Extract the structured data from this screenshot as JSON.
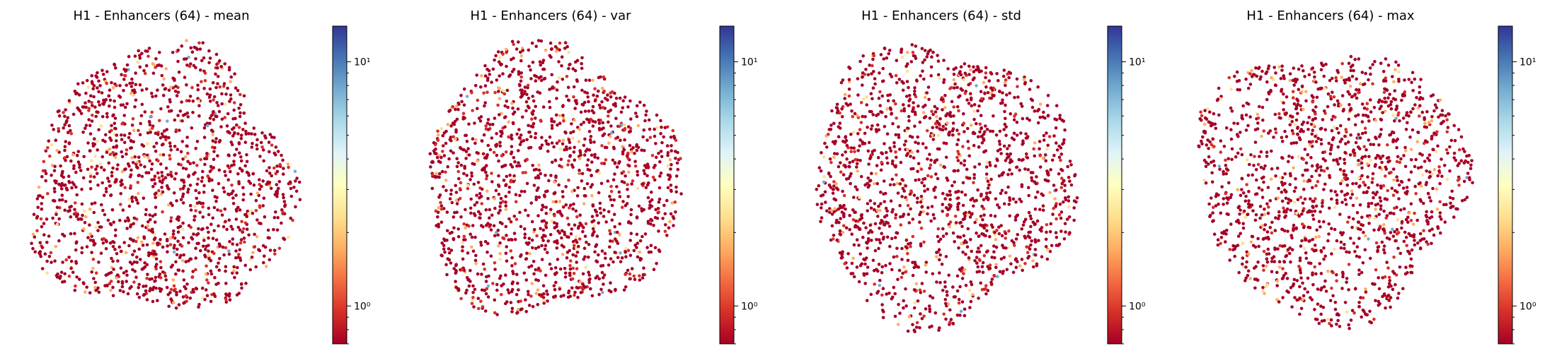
{
  "chart_data": [
    {
      "type": "scatter",
      "title": "H1 - Enhancers (64) - mean",
      "xlabel": "",
      "ylabel": "",
      "axes_visible": false,
      "grid": false,
      "colorbar": {
        "colormap": "RdYlBu",
        "scale": "log",
        "range": [
          0.7,
          14
        ],
        "major_ticks": [
          1,
          10
        ],
        "tick_labels": [
          "10⁰",
          "10¹"
        ],
        "placement": "right"
      },
      "point_color_value_mostly": 0.75
    },
    {
      "type": "scatter",
      "title": "H1 - Enhancers (64) - var",
      "xlabel": "",
      "ylabel": "",
      "axes_visible": false,
      "grid": false,
      "colorbar": {
        "colormap": "RdYlBu",
        "scale": "log",
        "range": [
          0.7,
          14
        ],
        "major_ticks": [
          1,
          10
        ],
        "tick_labels": [
          "10⁰",
          "10¹"
        ],
        "placement": "right"
      },
      "point_color_value_mostly": 0.75
    },
    {
      "type": "scatter",
      "title": "H1 - Enhancers (64) - std",
      "xlabel": "",
      "ylabel": "",
      "axes_visible": false,
      "grid": false,
      "colorbar": {
        "colormap": "RdYlBu",
        "scale": "log",
        "range": [
          0.7,
          14
        ],
        "major_ticks": [
          1,
          10
        ],
        "tick_labels": [
          "10⁰",
          "10¹"
        ],
        "placement": "right"
      },
      "point_color_value_mostly": 0.75
    },
    {
      "type": "scatter",
      "title": "H1 - Enhancers (64) - max",
      "xlabel": "",
      "ylabel": "",
      "axes_visible": false,
      "grid": false,
      "colorbar": {
        "colormap": "RdYlBu",
        "scale": "log",
        "range": [
          0.7,
          14
        ],
        "major_ticks": [
          1,
          10
        ],
        "tick_labels": [
          "10⁰",
          "10¹"
        ],
        "placement": "right"
      },
      "point_color_value_mostly": 0.75
    }
  ],
  "colors": {
    "dominant_point": "#a50026",
    "colormap_stops": [
      "#a50026",
      "#d73027",
      "#f46d43",
      "#fdae61",
      "#fee090",
      "#ffffbf",
      "#e0f3f8",
      "#abd9e9",
      "#74add1",
      "#4575b4",
      "#313695"
    ]
  }
}
